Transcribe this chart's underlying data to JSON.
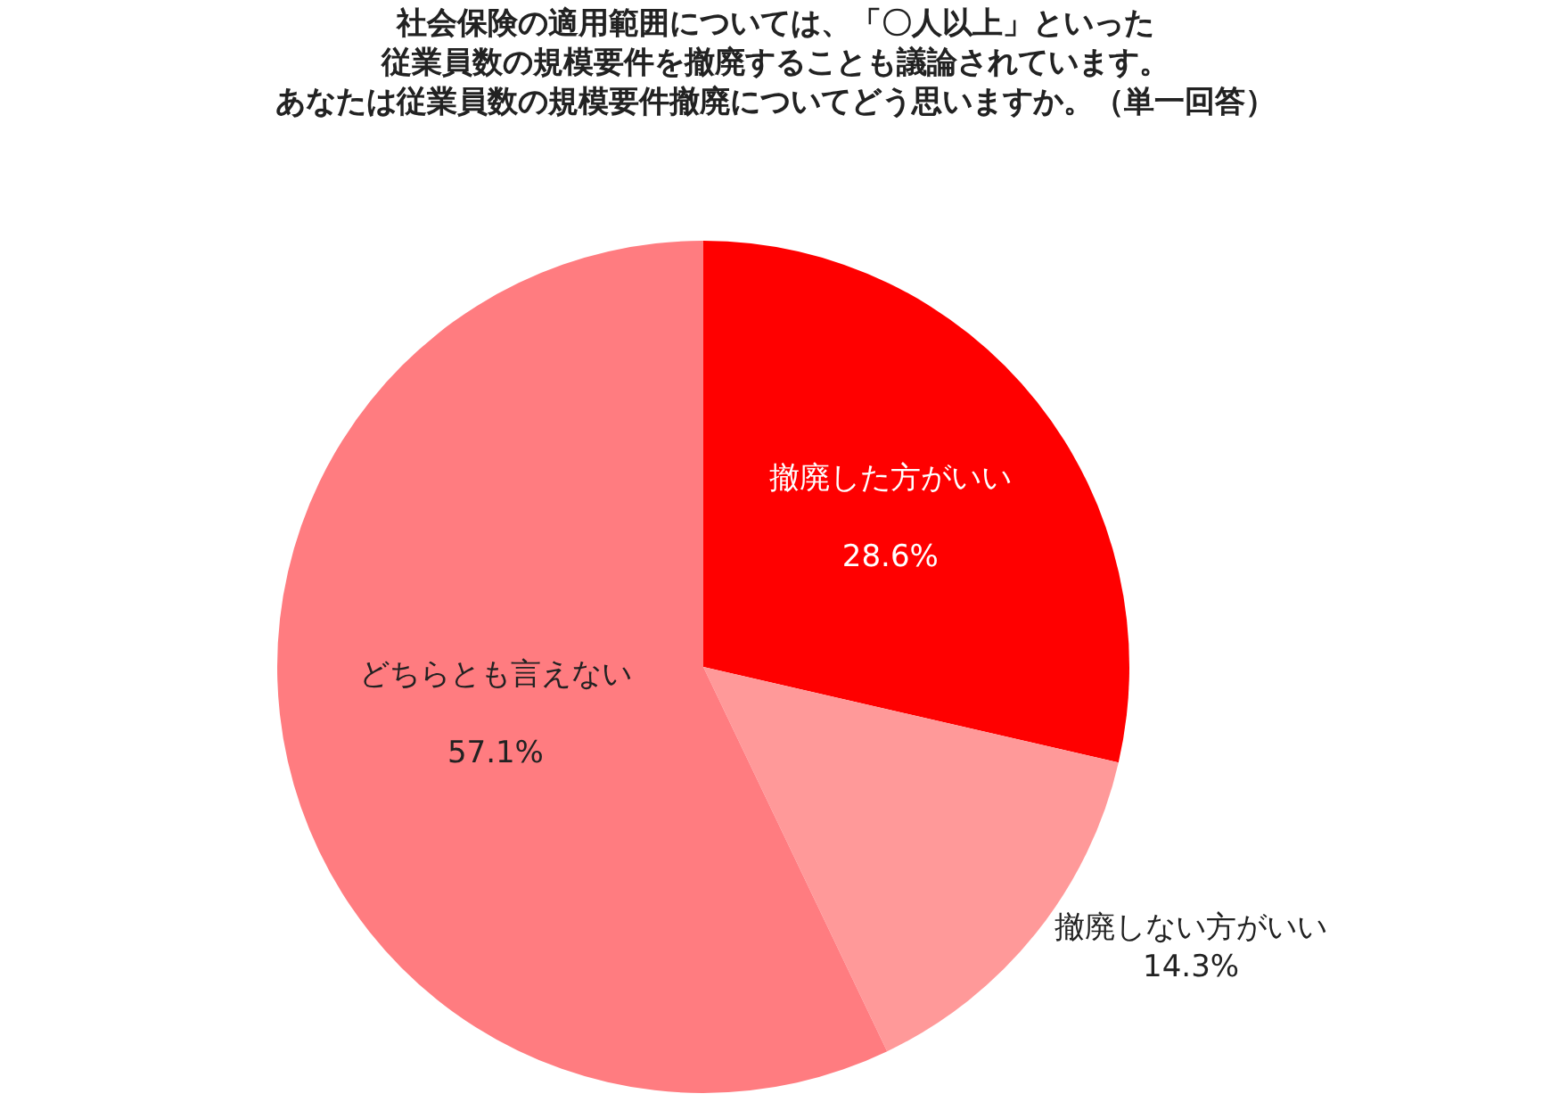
{
  "chart_data": {
    "type": "pie",
    "title": "社会保険の適用範囲については、「〇人以上」といった従業員数の規模要件を撤廃することも議論されています。",
    "subtitle": "あなたは従業員数の規模要件撤廃についてどう思いますか。（単一回答）",
    "categories": [
      "撤廃した方がいい",
      "撤廃しない方がいい",
      "どちらとも言えない"
    ],
    "values": [
      28.6,
      14.3,
      57.1
    ],
    "colors": [
      "#ff0000",
      "#ff9999",
      "#ff7c80"
    ],
    "value_labels": [
      "28.6%",
      "14.3%",
      "57.1%"
    ],
    "legend": false
  }
}
